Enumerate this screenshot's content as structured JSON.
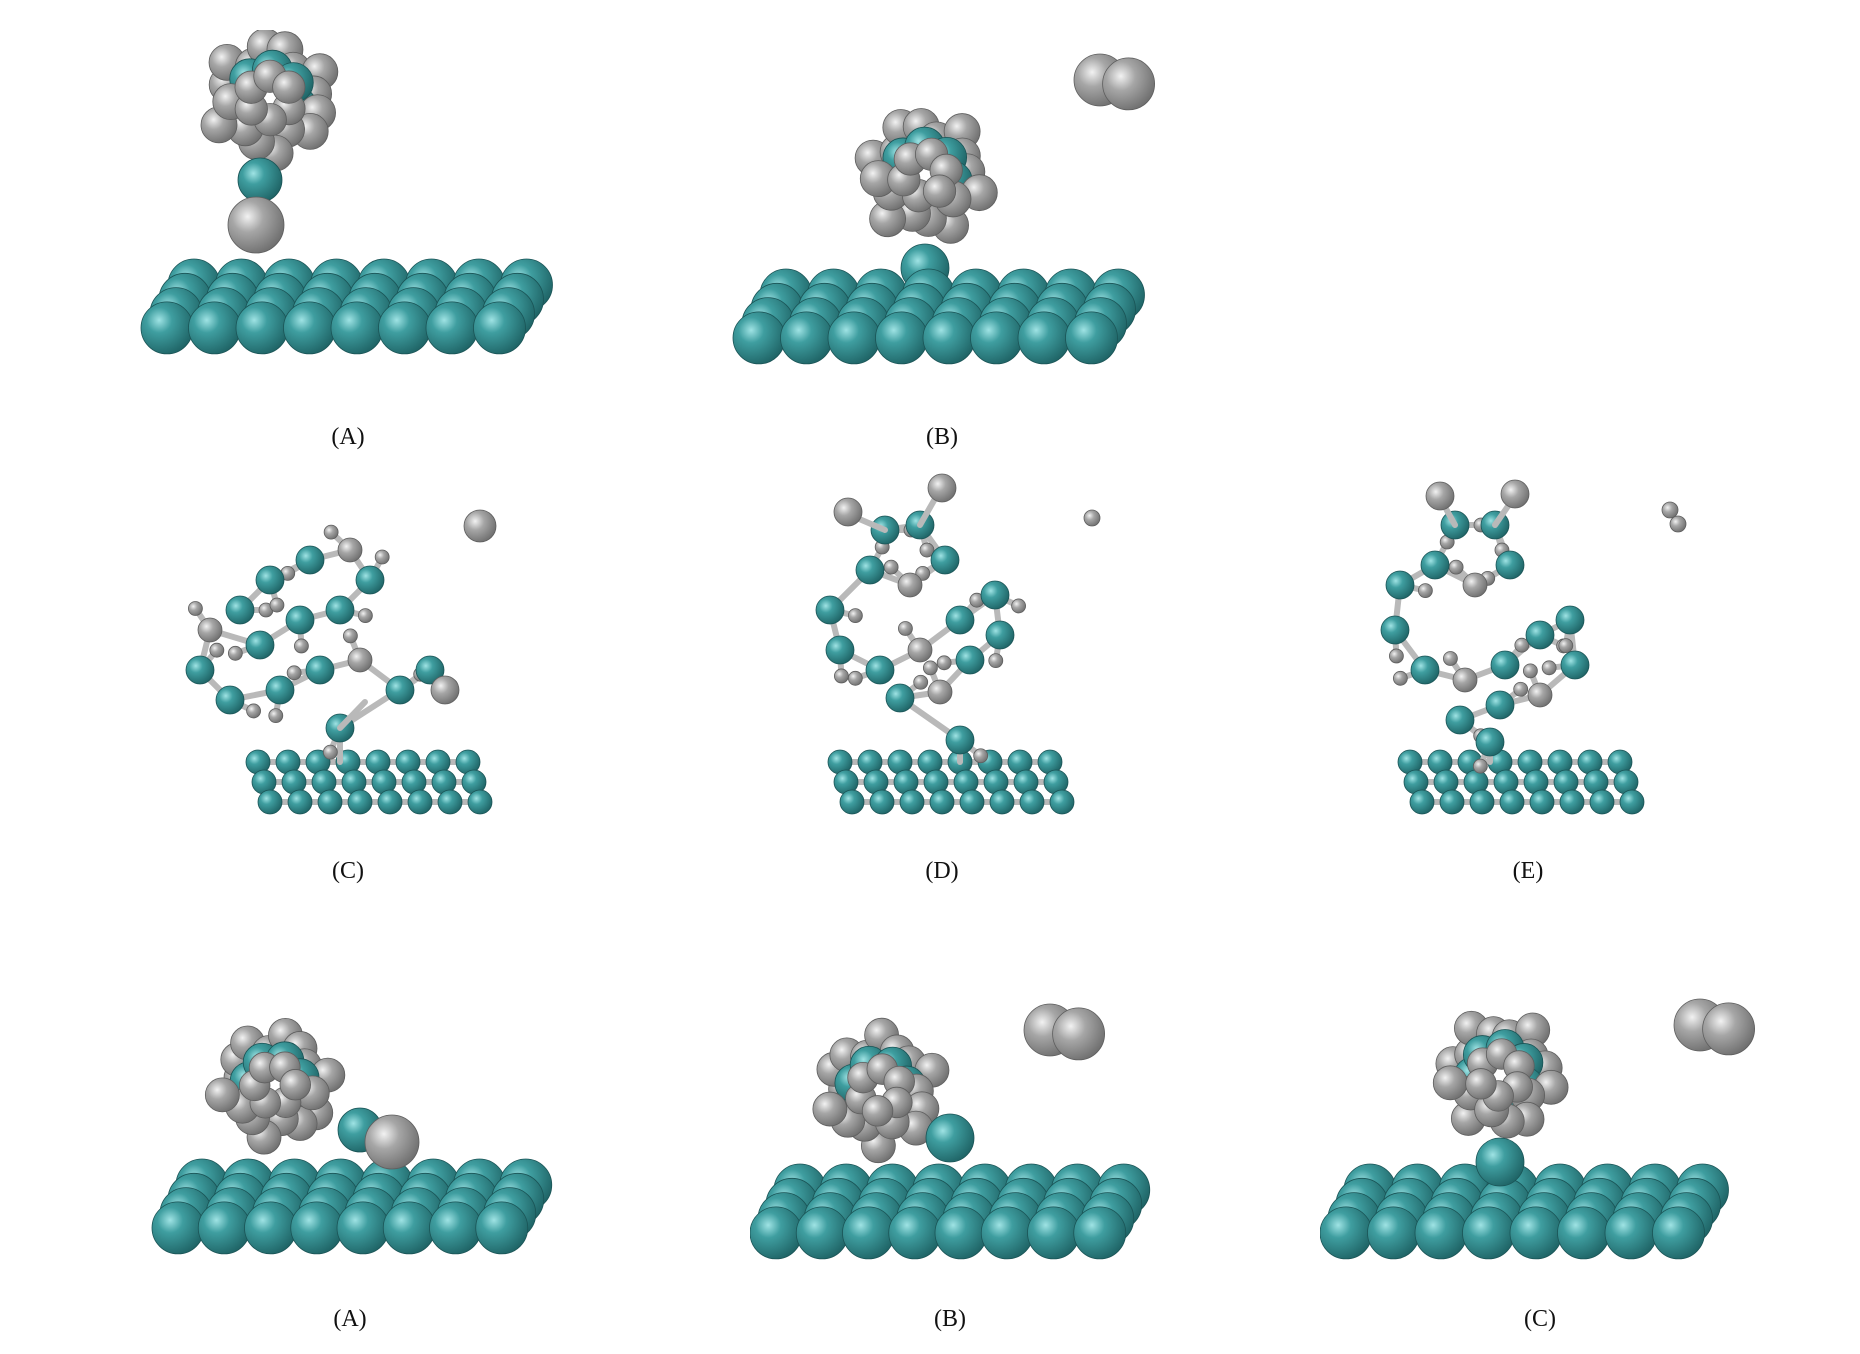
{
  "colors": {
    "metal_atom": "#3f9ea0",
    "metal_dark": "#1f6466",
    "hydrogen_atom": "#a6a6a6",
    "hydrogen_dark": "#6f6f6f",
    "bond": "#b9b9b9",
    "label_text": "#111111"
  },
  "figure": {
    "panels": [
      {
        "id": "a1",
        "label": "(A)",
        "style": "space-filling"
      },
      {
        "id": "b1",
        "label": "(B)",
        "style": "space-filling"
      },
      {
        "id": "c1",
        "label": "(C)",
        "style": "ball-and-stick"
      },
      {
        "id": "d1",
        "label": "(D)",
        "style": "ball-and-stick"
      },
      {
        "id": "e1",
        "label": "(E)",
        "style": "ball-and-stick"
      },
      {
        "id": "a2",
        "label": "(A)",
        "style": "space-filling"
      },
      {
        "id": "b2",
        "label": "(B)",
        "style": "space-filling"
      },
      {
        "id": "c2",
        "label": "(C)",
        "style": "space-filling"
      }
    ]
  }
}
